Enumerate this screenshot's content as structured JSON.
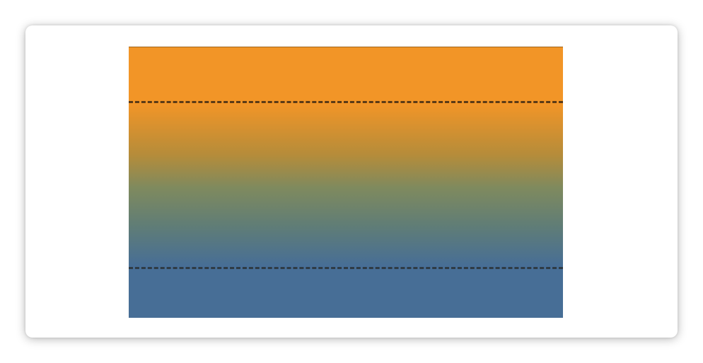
{
  "colors": {
    "page_background": "#ffffff",
    "card_background": "#ffffff",
    "gradient_top": "#f29527",
    "gradient_mid_upper": "#b58c3a",
    "gradient_mid": "#7f8a5e",
    "gradient_mid_lower": "#607d76",
    "gradient_bottom": "#476e96",
    "dash_line_top": "#5a3a16",
    "dash_line_bottom": "#2f3b45"
  },
  "gradient": {
    "direction": "to bottom",
    "stops": [
      {
        "color_key": "gradient_top",
        "fraction": 0.0
      },
      {
        "color_key": "gradient_top",
        "fraction": 0.21
      },
      {
        "color_key": "gradient_mid_upper",
        "fraction": 0.4
      },
      {
        "color_key": "gradient_mid",
        "fraction": 0.52
      },
      {
        "color_key": "gradient_mid_lower",
        "fraction": 0.66
      },
      {
        "color_key": "gradient_bottom",
        "fraction": 0.81
      },
      {
        "color_key": "gradient_bottom",
        "fraction": 1.0
      }
    ]
  },
  "guides": [
    {
      "name": "top-dashed-guide",
      "style": "dashed",
      "color_key": "dash_line_top"
    },
    {
      "name": "bottom-dashed-guide",
      "style": "dashed",
      "color_key": "dash_line_bottom"
    }
  ]
}
